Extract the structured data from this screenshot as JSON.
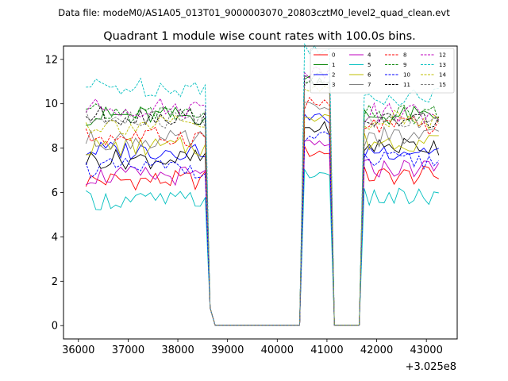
{
  "chart_data": {
    "type": "line",
    "supertitle": "Data file: modeM0/AS1A05_013T01_9000003070_20803cztM0_level2_quad_clean.evt",
    "title": "Quadrant 1 module wise count rates with 100.0s bins.",
    "xlabel": "",
    "ylabel": "",
    "x_offset_label": "+3.025e8",
    "xlim": [
      35700,
      43620
    ],
    "ylim": [
      -0.6,
      12.6
    ],
    "xticks": [
      36000,
      37000,
      38000,
      39000,
      40000,
      41000,
      42000,
      43000
    ],
    "yticks": [
      0,
      2,
      4,
      6,
      8,
      10,
      12
    ],
    "legend_position": "upper-right",
    "segments": [
      {
        "start": 36150,
        "end": 38550
      },
      {
        "start": 40550,
        "end": 41050
      },
      {
        "start": 41750,
        "end": 43250
      }
    ],
    "x_all": [
      36150,
      36250,
      36350,
      36450,
      36550,
      36650,
      36750,
      36850,
      36950,
      37050,
      37150,
      37250,
      37350,
      37450,
      37550,
      37650,
      37750,
      37850,
      37950,
      38050,
      38150,
      38250,
      38350,
      38450,
      38550,
      38650,
      38750,
      40450,
      40550,
      40650,
      40750,
      40850,
      40950,
      41050,
      41150,
      41250,
      41650,
      41750,
      41850,
      41950,
      42050,
      42150,
      42250,
      42350,
      42450,
      42550,
      42650,
      42750,
      42850,
      42950,
      43050,
      43150,
      43250
    ],
    "series": [
      {
        "name": "0",
        "color": "#ff0000",
        "dash": "solid",
        "base": 6.55,
        "seg3": 6.75,
        "gap_level": 0.8
      },
      {
        "name": "1",
        "color": "#008000",
        "dash": "solid",
        "base": 9.45,
        "seg3": 9.45,
        "gap_level": 0.8
      },
      {
        "name": "2",
        "color": "#0000ff",
        "dash": "solid",
        "base": 7.9,
        "seg3": 7.9,
        "gap_level": 0.8
      },
      {
        "name": "3",
        "color": "#000000",
        "dash": "solid",
        "base": 7.5,
        "seg3": 8.1,
        "gap_level": 0.8
      },
      {
        "name": "4",
        "color": "#bf00bf",
        "dash": "solid",
        "base": 6.75,
        "seg3": 7.1,
        "gap_level": 0.8
      },
      {
        "name": "5",
        "color": "#00bfbf",
        "dash": "solid",
        "base": 5.65,
        "seg3": 5.75,
        "gap_level": 0.8
      },
      {
        "name": "6",
        "color": "#bfbf00",
        "dash": "solid",
        "base": 8.05,
        "seg3": 8.3,
        "gap_level": 0.8
      },
      {
        "name": "7",
        "color": "#808080",
        "dash": "solid",
        "base": 8.35,
        "seg3": 8.5,
        "gap_level": 0.8
      },
      {
        "name": "8",
        "color": "#ff0000",
        "dash": "dashed",
        "base": 8.5,
        "seg3": 9.0,
        "gap_level": 0.8
      },
      {
        "name": "9",
        "color": "#008000",
        "dash": "dashed",
        "base": 9.55,
        "seg3": 9.5,
        "gap_level": 0.8
      },
      {
        "name": "10",
        "color": "#0000ff",
        "dash": "dashed",
        "base": 7.1,
        "seg3": 7.4,
        "gap_level": 0.8
      },
      {
        "name": "11",
        "color": "#000000",
        "dash": "dashed",
        "base": 9.45,
        "seg3": 9.25,
        "gap_level": 0.8
      },
      {
        "name": "12",
        "color": "#bf00bf",
        "dash": "dashed",
        "base": 9.8,
        "seg3": 9.6,
        "gap_level": 0.8
      },
      {
        "name": "13",
        "color": "#00bfbf",
        "dash": "dashed",
        "base": 10.75,
        "seg3": 10.35,
        "gap_level": 0.8
      },
      {
        "name": "14",
        "color": "#bfbf00",
        "dash": "dashed",
        "base": 9.05,
        "seg3": 9.25,
        "gap_level": 0.8
      },
      {
        "name": "15",
        "color": "#808080",
        "dash": "dashed",
        "base": 9.25,
        "seg3": 9.3,
        "gap_level": 0.8
      }
    ]
  }
}
